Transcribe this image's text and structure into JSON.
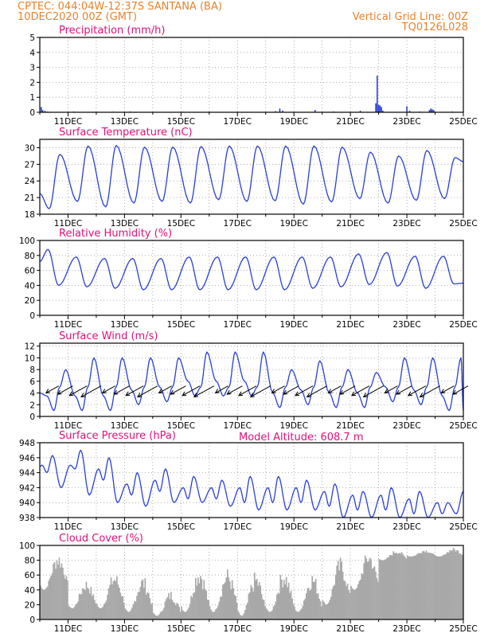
{
  "header": {
    "line1": "CPTEC:   044:04W-12:37S   SANTANA (BA)",
    "line2": "10DEC2020 00Z (GMT)",
    "grid_note": "Vertical Grid Line: 00Z",
    "code": "TQ0126L028",
    "model_altitude": "Model Altitude: 608.7 m"
  },
  "colors": {
    "header": "#e8822a",
    "panel_title": "#e0107a",
    "series": "#2a3fd6",
    "bars": "#a8a8a8",
    "arrows": "#000000"
  },
  "x_tick_labels": [
    "11DEC",
    "13DEC",
    "15DEC",
    "17DEC",
    "19DEC",
    "21DEC",
    "23DEC",
    "25DEC"
  ],
  "chart_data": [
    {
      "type": "bar",
      "title": "Precipitation (mm/h)",
      "ylim": [
        0,
        5
      ],
      "yticks": [
        "0",
        "1",
        "2",
        "3",
        "4",
        "5"
      ],
      "x_range_days": [
        "10DEC2020 00Z",
        "25DEC2020 00Z"
      ],
      "grid": true,
      "events": [
        {
          "t": 0.05,
          "v": 0.35
        },
        {
          "t": 0.1,
          "v": 0.15
        },
        {
          "t": 0.18,
          "v": 0.1
        },
        {
          "t": 0.28,
          "v": 0.05
        },
        {
          "t": 1.2,
          "v": 0.05
        },
        {
          "t": 2.6,
          "v": 0.04
        },
        {
          "t": 3.2,
          "v": 0.05
        },
        {
          "t": 5.1,
          "v": 0.04
        },
        {
          "t": 6.0,
          "v": 0.04
        },
        {
          "t": 8.35,
          "v": 0.08
        },
        {
          "t": 8.5,
          "v": 0.25
        },
        {
          "t": 8.6,
          "v": 0.12
        },
        {
          "t": 9.75,
          "v": 0.15
        },
        {
          "t": 10.4,
          "v": 0.05
        },
        {
          "t": 11.35,
          "v": 0.1
        },
        {
          "t": 11.9,
          "v": 0.6
        },
        {
          "t": 11.95,
          "v": 2.45
        },
        {
          "t": 12.0,
          "v": 0.5
        },
        {
          "t": 12.05,
          "v": 0.45
        },
        {
          "t": 12.1,
          "v": 0.35
        },
        {
          "t": 12.15,
          "v": 0.1
        },
        {
          "t": 13.0,
          "v": 0.4
        },
        {
          "t": 13.1,
          "v": 0.1
        },
        {
          "t": 13.45,
          "v": 0.05
        },
        {
          "t": 13.8,
          "v": 0.15
        },
        {
          "t": 13.85,
          "v": 0.25
        },
        {
          "t": 13.9,
          "v": 0.2
        },
        {
          "t": 13.95,
          "v": 0.15
        },
        {
          "t": 14.6,
          "v": 0.05
        }
      ]
    },
    {
      "type": "line",
      "title": "Surface Temperature (nC)",
      "ylim": [
        18,
        31.5
      ],
      "yticks": [
        "18",
        "21",
        "24",
        "27",
        "30"
      ],
      "grid": true,
      "diurnal": {
        "tmin": [
          19.0,
          20.3,
          19.3,
          20.0,
          20.3,
          20.0,
          20.6,
          20.3,
          20.4,
          19.8,
          20.2,
          20.8,
          20.0,
          20.5,
          20.8
        ],
        "tmax": [
          28.8,
          30.3,
          30.4,
          30.1,
          30.1,
          30.2,
          30.3,
          30.3,
          30.3,
          30.3,
          30.1,
          29.2,
          28.5,
          29.5,
          28.2
        ],
        "start_value": 21.7,
        "end_value": 27.5,
        "hour_min": 8,
        "hour_max": 17
      }
    },
    {
      "type": "line",
      "title": "Relative Humidity (%)",
      "ylim": [
        0,
        100
      ],
      "yticks": [
        "0",
        "20",
        "40",
        "60",
        "80",
        "100"
      ],
      "grid": true,
      "diurnal": {
        "rhmax": [
          88,
          78,
          76,
          76,
          76,
          78,
          78,
          78,
          78,
          78,
          78,
          82,
          84,
          79,
          79
        ],
        "rhmin": [
          40,
          38,
          36,
          34,
          34,
          34,
          34,
          34,
          34,
          36,
          38,
          41,
          39,
          36,
          42
        ],
        "start_value": 72,
        "end_value": 43,
        "hour_max": 7,
        "hour_min": 16
      }
    },
    {
      "type": "line",
      "title": "Surface Wind (m/s)",
      "ylim": [
        0,
        12.5
      ],
      "yticks": [
        "0",
        "2",
        "4",
        "6",
        "8",
        "10",
        "12"
      ],
      "grid": true,
      "diurnal": {
        "wmax": [
          8.0,
          10.0,
          10.0,
          10.0,
          10.0,
          11.0,
          11.0,
          11.0,
          8.0,
          9.5,
          8.0,
          7.5,
          10.0,
          10.0,
          10.0
        ],
        "wmin": [
          1.0,
          1.0,
          1.0,
          2.0,
          2.5,
          3.5,
          3.5,
          3.5,
          1.5,
          2.0,
          1.5,
          1.5,
          2.5,
          2.0,
          1.0
        ],
        "hour_max": 22,
        "hour_min": 12
      },
      "arrow_days": [
        0.05,
        0.55,
        1.05,
        1.55,
        2.05,
        2.55,
        3.05,
        3.55,
        4.05,
        4.55,
        5.05,
        5.55,
        6.05,
        6.55,
        7.05,
        7.55,
        8.05,
        8.55,
        9.05,
        9.55,
        10.05,
        10.55,
        11.05,
        11.55,
        12.05,
        12.55,
        13.05,
        13.55,
        14.05,
        14.55
      ],
      "arrow_direction": "toward south-west"
    },
    {
      "type": "line",
      "title": "Surface Pressure (hPa)",
      "ylim": [
        938,
        948
      ],
      "yticks": [
        "938",
        "940",
        "942",
        "944",
        "946",
        "948"
      ],
      "grid": true,
      "diurnal": {
        "pmax_main": [
          946.3,
          947.0,
          946.0,
          944.0,
          944.5,
          943.5,
          943.0,
          943.5,
          943.5,
          943.0,
          942.5,
          941.5,
          942.0,
          941.5,
          940.0
        ],
        "pmin_main": [
          942.0,
          941.0,
          940.0,
          939.5,
          940.0,
          940.0,
          939.5,
          939.0,
          939.0,
          939.0,
          938.0,
          938.0,
          938.0,
          938.0,
          938.5
        ],
        "pmax_second": [
          945.0,
          945.0,
          944.5,
          942.5,
          943.0,
          942.0,
          942.0,
          942.0,
          942.0,
          942.0,
          941.5,
          941.0,
          941.0,
          940.5,
          940.0
        ],
        "pmin_second": [
          944.0,
          944.5,
          943.0,
          941.0,
          941.5,
          940.5,
          940.5,
          940.0,
          940.0,
          940.0,
          939.5,
          939.0,
          939.0,
          938.5,
          938.5
        ]
      }
    },
    {
      "type": "bar",
      "title": "Cloud Cover (%)",
      "ylim": [
        0,
        100
      ],
      "yticks": [
        "0",
        "20",
        "40",
        "60",
        "80",
        "100"
      ],
      "grid": true,
      "daily_levels": [
        {
          "day": 0,
          "max": 92,
          "min": 40
        },
        {
          "day": 1,
          "max": 55,
          "min": 15
        },
        {
          "day": 2,
          "max": 65,
          "min": 15
        },
        {
          "day": 3,
          "max": 60,
          "min": 10
        },
        {
          "day": 4,
          "max": 40,
          "min": 5
        },
        {
          "day": 5,
          "max": 75,
          "min": 10
        },
        {
          "day": 6,
          "max": 70,
          "min": 10
        },
        {
          "day": 7,
          "max": 65,
          "min": 5
        },
        {
          "day": 8,
          "max": 70,
          "min": 10
        },
        {
          "day": 9,
          "max": 65,
          "min": 10
        },
        {
          "day": 10,
          "max": 85,
          "min": 20
        },
        {
          "day": 11,
          "max": 95,
          "min": 40
        },
        {
          "day": 12,
          "max": 95,
          "min": 80
        },
        {
          "day": 13,
          "max": 95,
          "min": 85
        },
        {
          "day": 14,
          "max": 97,
          "min": 85
        }
      ]
    }
  ]
}
